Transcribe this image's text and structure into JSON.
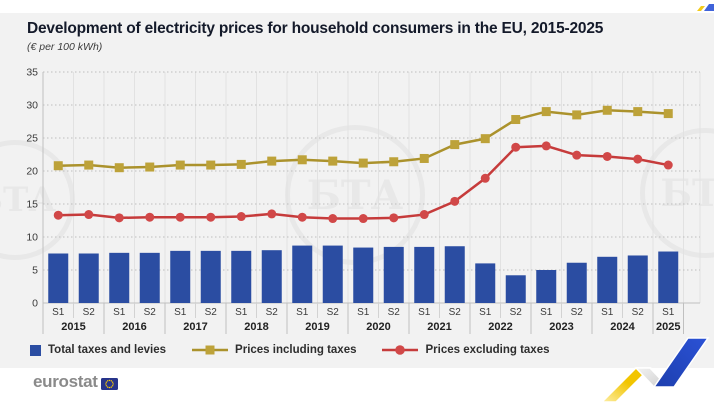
{
  "header": {
    "title": "Development of electricity prices for household consumers in the EU, 2015-2025",
    "subtitle": "(€ per 100 kWh)"
  },
  "watermark": {
    "text": "БТА"
  },
  "footer": {
    "brand": "eurostat"
  },
  "colors": {
    "bar_blue": "#2b4da2",
    "line_gold": "#ab922c",
    "marker_gold": "#bda239",
    "line_red": "#c63b3b",
    "marker_red": "#d14848",
    "grid_dotted": "#bdbdbd",
    "grid_vertical": "#e2e2e2",
    "axis_line": "#c0c0c0",
    "tick_text": "#3a3a3a",
    "eu_flag_blue": "#27348b",
    "eu_flag_stars": "#ffcc00",
    "logo_yellow": "#f2c500",
    "logo_gray": "#d9d9d9",
    "logo_blue": "#2346c6"
  },
  "chart_data": {
    "type": "bar+line",
    "title": "Development of electricity prices for household consumers in the EU, 2015-2025",
    "ylabel": "€ per 100 kWh",
    "ylim": [
      0,
      35
    ],
    "ytick_step": 5,
    "grid": true,
    "legend_position": "bottom",
    "semesters": [
      "S1",
      "S2",
      "S1",
      "S2",
      "S1",
      "S2",
      "S1",
      "S2",
      "S1",
      "S2",
      "S1",
      "S2",
      "S1",
      "S2",
      "S1",
      "S2",
      "S1",
      "S2",
      "S1",
      "S2",
      "S1"
    ],
    "year_groups": [
      {
        "label": "2015",
        "count": 2
      },
      {
        "label": "2016",
        "count": 2
      },
      {
        "label": "2017",
        "count": 2
      },
      {
        "label": "2018",
        "count": 2
      },
      {
        "label": "2019",
        "count": 2
      },
      {
        "label": "2020",
        "count": 2
      },
      {
        "label": "2021",
        "count": 2
      },
      {
        "label": "2022",
        "count": 2
      },
      {
        "label": "2023",
        "count": 2
      },
      {
        "label": "2024",
        "count": 2
      },
      {
        "label": "2025",
        "count": 1
      }
    ],
    "series": [
      {
        "name": "Total taxes and levies",
        "type": "bar",
        "values": [
          7.5,
          7.5,
          7.6,
          7.6,
          7.9,
          7.9,
          7.9,
          8.0,
          8.7,
          8.7,
          8.4,
          8.5,
          8.5,
          8.6,
          6.0,
          4.2,
          5.0,
          6.1,
          7.0,
          7.2,
          7.8
        ]
      },
      {
        "name": "Prices including taxes",
        "type": "line",
        "marker": "square",
        "values": [
          20.8,
          20.9,
          20.5,
          20.6,
          20.9,
          20.9,
          21.0,
          21.5,
          21.7,
          21.5,
          21.2,
          21.4,
          21.9,
          24.0,
          24.9,
          27.8,
          29.0,
          28.5,
          29.2,
          29.0,
          28.7
        ]
      },
      {
        "name": "Prices excluding taxes",
        "type": "line",
        "marker": "circle",
        "values": [
          13.3,
          13.4,
          12.9,
          13.0,
          13.0,
          13.0,
          13.1,
          13.5,
          13.0,
          12.8,
          12.8,
          12.9,
          13.4,
          15.4,
          18.9,
          23.6,
          23.8,
          22.4,
          22.2,
          21.8,
          20.9
        ]
      }
    ]
  }
}
